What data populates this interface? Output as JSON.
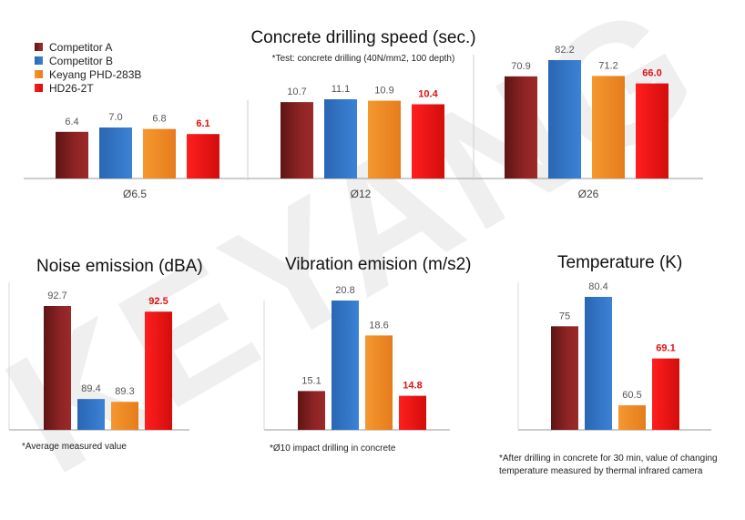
{
  "watermark": {
    "text": "KEYANG",
    "color": "#ececec"
  },
  "colors": {
    "Competitor A": "#8e2424",
    "Competitor B": "#2f73c4",
    "Keyang PHD-283B": "#f08a26",
    "HD26-2T": "#e51515",
    "highlight_label": "#e01010",
    "axis": "#9a9a9a"
  },
  "legend": {
    "items": [
      "Competitor A",
      "Competitor B",
      "Keyang PHD-283B",
      "HD26-2T"
    ]
  },
  "chart_data": [
    {
      "id": "drilling",
      "type": "bar",
      "title": "Concrete drilling speed (sec.)",
      "subtitle": "*Test: concrete drilling (40N/mm2, 100 depth)",
      "note": "",
      "categories": [
        "Ø6.5",
        "Ø12",
        "Ø26"
      ],
      "series": [
        {
          "name": "Competitor A",
          "values": [
            6.4,
            10.7,
            70.9
          ],
          "labels": [
            "6.4",
            "10.7",
            "70.9"
          ]
        },
        {
          "name": "Competitor B",
          "values": [
            7.0,
            11.1,
            82.2
          ],
          "labels": [
            "7.0",
            "11.1",
            "82.2"
          ]
        },
        {
          "name": "Keyang PHD-283B",
          "values": [
            6.8,
            10.9,
            71.2
          ],
          "labels": [
            "6.8",
            "10.9",
            "71.2"
          ]
        },
        {
          "name": "HD26-2T",
          "values": [
            6.1,
            10.4,
            66.0
          ],
          "labels": [
            "6.1",
            "10.4",
            "66.0"
          ]
        }
      ],
      "highlight_series": "HD26-2T"
    },
    {
      "id": "noise",
      "type": "bar",
      "title": "Noise emission (dBA)",
      "note": "*Average measured value",
      "values": [
        92.7,
        89.4,
        89.3,
        92.5
      ],
      "labels": [
        "92.7",
        "89.4",
        "89.3",
        "92.5"
      ],
      "series_names": [
        "Competitor A",
        "Competitor B",
        "Keyang PHD-283B",
        "HD26-2T"
      ],
      "highlight_index": 3
    },
    {
      "id": "vibration",
      "type": "bar",
      "title": "Vibration emision (m/s2)",
      "note": "*Ø10 impact drilling in concrete",
      "values": [
        15.1,
        20.8,
        18.6,
        14.8
      ],
      "labels": [
        "15.1",
        "20.8",
        "18.6",
        "14.8"
      ],
      "series_names": [
        "Competitor A",
        "Competitor B",
        "Keyang PHD-283B",
        "HD26-2T"
      ],
      "highlight_index": 3
    },
    {
      "id": "temperature",
      "type": "bar",
      "title": "Temperature (K)",
      "note_lines": [
        "*After drilling in concrete for 30 min, value of changing",
        "temperature measured by thermal infrared camera"
      ],
      "values": [
        75,
        80.4,
        60.5,
        69.1
      ],
      "labels": [
        "75",
        "80.4",
        "60.5",
        "69.1"
      ],
      "series_names": [
        "Competitor A",
        "Competitor B",
        "Keyang PHD-283B",
        "HD26-2T"
      ],
      "highlight_index": 3
    }
  ]
}
